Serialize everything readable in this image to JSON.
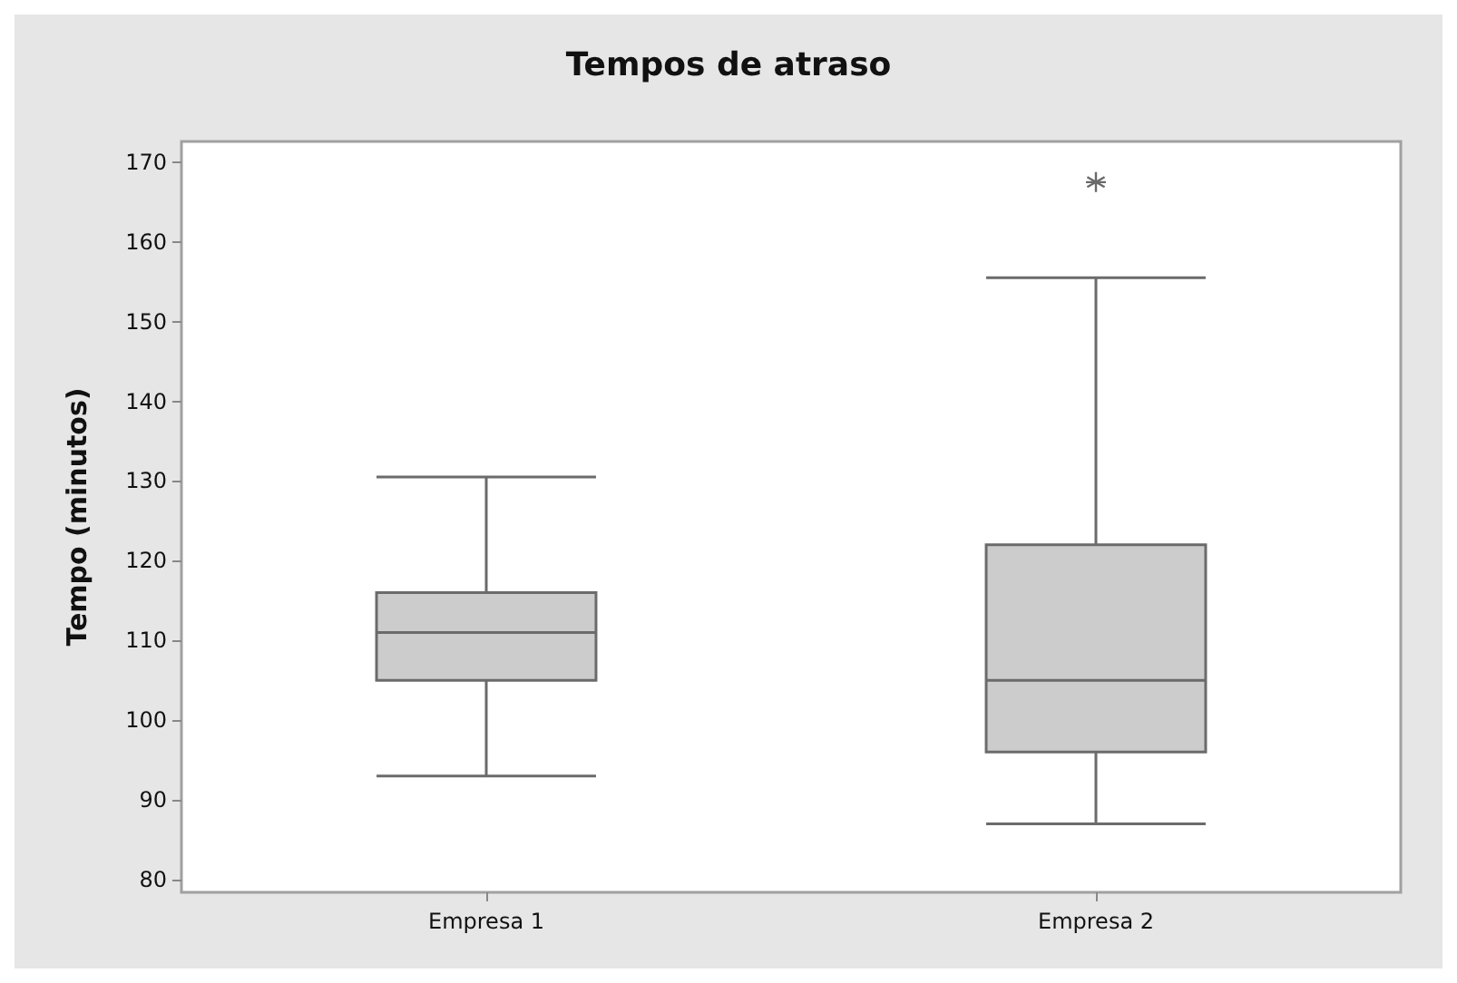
{
  "chart_data": {
    "type": "box",
    "title": "Tempos de atraso",
    "ylabel": "Tempo (minutos)",
    "categories": [
      "Empresa 1",
      "Empresa 2"
    ],
    "color": "#cccccc",
    "boxes": [
      {
        "low": 93,
        "q1": 105,
        "median": 111,
        "q3": 116,
        "high": 130.5
      },
      {
        "low": 87,
        "q1": 96,
        "median": 105,
        "q3": 122,
        "high": 155.5,
        "outliers": [
          167.5
        ]
      }
    ],
    "ylim": [
      78.4,
      172.6
    ],
    "yticks": [
      80,
      90,
      100,
      110,
      120,
      130,
      140,
      150,
      160,
      170
    ],
    "grid": false
  }
}
